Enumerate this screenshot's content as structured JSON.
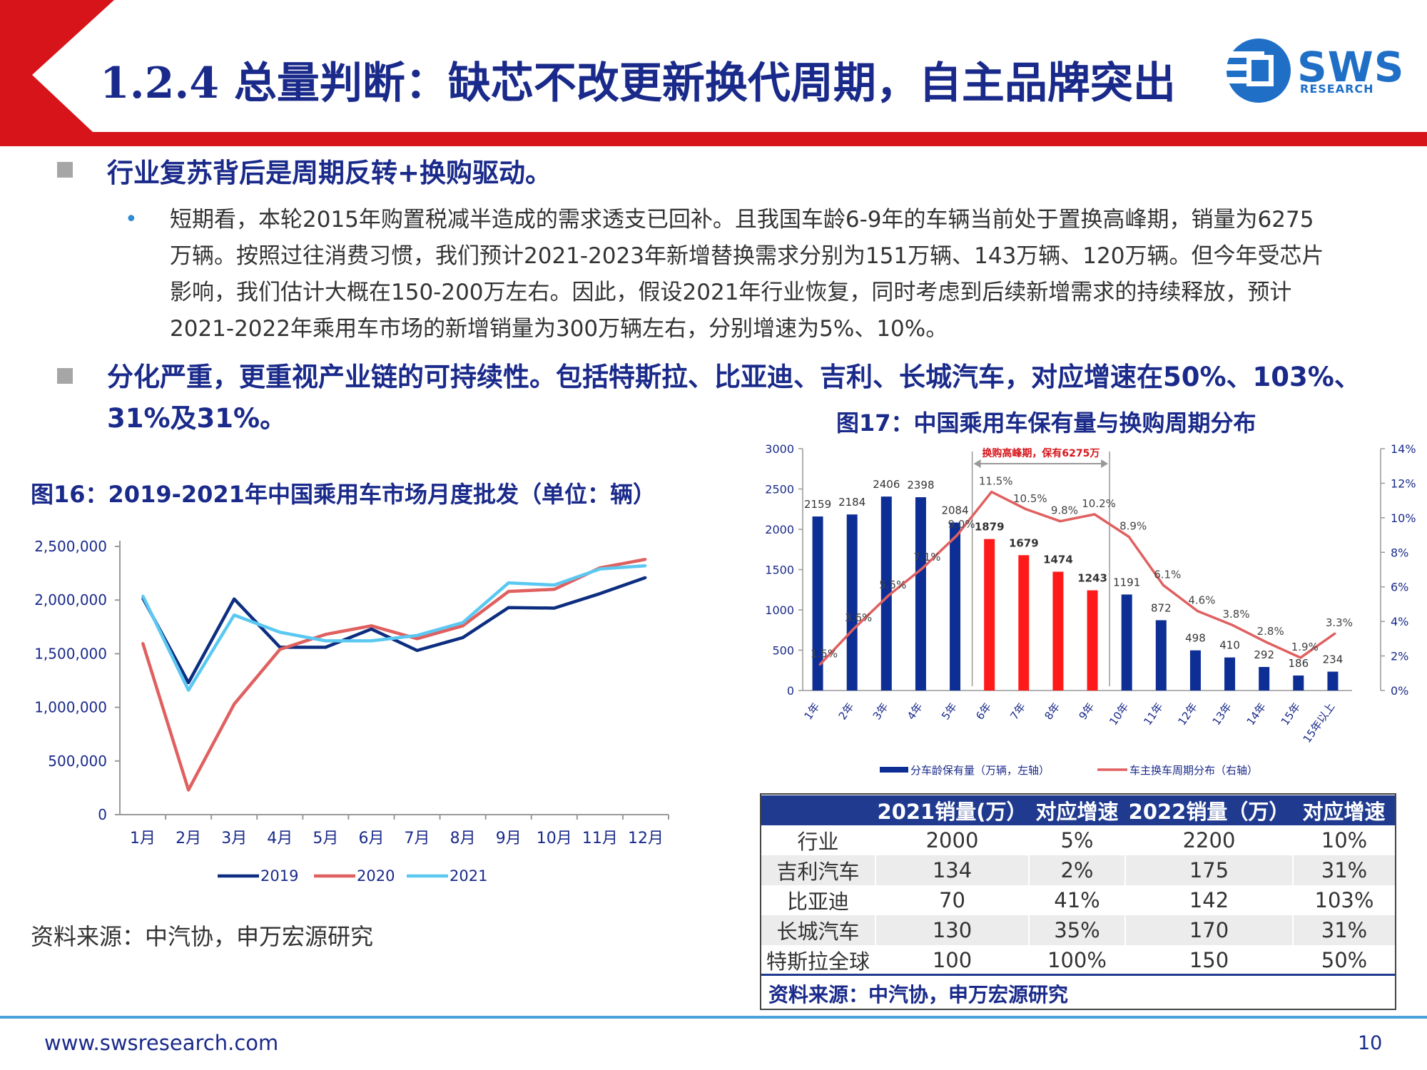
{
  "header": {
    "title": "1.2.4 总量判断：缺芯不改更新换代周期，自主品牌突出",
    "logo_text": "SWS",
    "logo_sub": "RESEARCH"
  },
  "bullets": {
    "b1_heading": "行业复苏背后是周期反转+换购驱动。",
    "b1_sub_lines": [
      "短期看，本轮2015年购置税减半造成的需求透支已回补。且我国车龄6-9年的车辆当前处于置换高峰期，销量为6275",
      "万辆。按照过往消费习惯，我们预计2021-2023年新增替换需求分别为151万辆、143万辆、120万辆。但今年受芯片",
      "影响，我们估计大概在150-200万左右。因此，假设2021年行业恢复，同时考虑到后续新增需求的持续释放，预计",
      "2021-2022年乘用车市场的新增销量为300万辆左右，分别增速为5%、10%。"
    ],
    "b2_heading_lines": [
      "分化严重，更重视产业链的可持续性。包括特斯拉、比亚迪、吉利、长城汽车，对应增速在50%、103%、",
      "31%及31%。"
    ]
  },
  "fig16": {
    "title": "图16：2019-2021年中国乘用车市场月度批发（单位：辆）",
    "source": "资料来源：中汽协，申万宏源研究"
  },
  "fig17": {
    "title": "图17：中国乘用车保有量与换购周期分布",
    "annotation": "换购高峰期，保有6275万"
  },
  "table": {
    "headers": [
      "",
      "2021销量(万）",
      "对应增速",
      "2022销量（万）",
      "对应增速"
    ],
    "rows": [
      [
        "行业",
        "2000",
        "5%",
        "2200",
        "10%"
      ],
      [
        "吉利汽车",
        "134",
        "2%",
        "175",
        "31%"
      ],
      [
        "比亚迪",
        "70",
        "41%",
        "142",
        "103%"
      ],
      [
        "长城汽车",
        "130",
        "35%",
        "170",
        "31%"
      ],
      [
        "特斯拉全球",
        "100",
        "100%",
        "150",
        "50%"
      ]
    ],
    "source": "资料来源：中汽协，申万宏源研究"
  },
  "footer": {
    "url": "www.swsresearch.com",
    "page": "10"
  },
  "colors": {
    "navy": "#1a2a8a",
    "red": "#d7141a",
    "bar_blue": "#0d2e94",
    "bar_red": "#ff1a1a",
    "line_red": "#e06060",
    "line_light": "#5bc8f2",
    "accent_blue": "#1f6fc7"
  },
  "chart_data": [
    {
      "type": "line",
      "categories": [
        "1月",
        "2月",
        "3月",
        "4月",
        "5月",
        "6月",
        "7月",
        "8月",
        "9月",
        "10月",
        "11月",
        "12月"
      ],
      "series": [
        {
          "name": "2019",
          "values": [
            2020000,
            1230000,
            2010000,
            1560000,
            1560000,
            1730000,
            1530000,
            1650000,
            1930000,
            1925000,
            2060000,
            2210000
          ]
        },
        {
          "name": "2020",
          "values": [
            1600000,
            230000,
            1030000,
            1540000,
            1680000,
            1760000,
            1640000,
            1760000,
            2080000,
            2100000,
            2300000,
            2380000
          ]
        },
        {
          "name": "2021",
          "values": [
            2040000,
            1160000,
            1860000,
            1700000,
            1620000,
            1620000,
            1670000,
            1790000,
            2160000,
            2140000,
            2290000,
            2320000
          ]
        }
      ],
      "yticks": [
        "0",
        "500,000",
        "1,000,000",
        "1,500,000",
        "2,000,000",
        "2,500,000"
      ],
      "ylim": [
        0,
        2500000
      ],
      "legend": "bottom"
    },
    {
      "type": "bar",
      "categories": [
        "1年",
        "2年",
        "3年",
        "4年",
        "5年",
        "6年",
        "7年",
        "8年",
        "9年",
        "10年",
        "11年",
        "12年",
        "13年",
        "14年",
        "15年",
        "15年以上"
      ],
      "series": [
        {
          "name": "分车龄保有量（万辆，左轴）",
          "axis": "left",
          "values": [
            2159,
            2184,
            2406,
            2398,
            2084,
            1879,
            1679,
            1474,
            1243,
            1191,
            872,
            498,
            410,
            292,
            186,
            234
          ]
        },
        {
          "name": "车主换车周期分布（右轴）",
          "type": "line",
          "axis": "right",
          "values": [
            1.5,
            3.6,
            5.5,
            7.1,
            9.0,
            11.5,
            10.5,
            9.8,
            10.2,
            8.9,
            6.1,
            4.6,
            3.8,
            2.8,
            1.9,
            3.3
          ]
        }
      ],
      "value_labels": [
        "2159",
        "2184",
        "2406",
        "2398",
        "2084",
        "1879",
        "1679",
        "1474",
        "1243",
        "1191",
        "872",
        "498",
        "410",
        "292",
        "186",
        "234"
      ],
      "pct_labels": [
        "1.5%",
        "3.6%",
        "5.5%",
        "7.1%",
        "9.0%",
        "11.5%",
        "10.5%",
        "9.8%",
        "10.2%",
        "8.9%",
        "6.1%",
        "4.6%",
        "3.8%",
        "2.8%",
        "1.9%",
        "3.3%"
      ],
      "highlight_categories": [
        "6年",
        "7年",
        "8年",
        "9年"
      ],
      "y_left_ticks": [
        "0",
        "500",
        "1000",
        "1500",
        "2000",
        "2500",
        "3000"
      ],
      "y_right_ticks": [
        "0%",
        "2%",
        "4%",
        "6%",
        "8%",
        "10%",
        "12%",
        "14%"
      ],
      "y_left_lim": [
        0,
        3000
      ],
      "y_right_lim": [
        0,
        14
      ],
      "legend": "bottom"
    }
  ]
}
